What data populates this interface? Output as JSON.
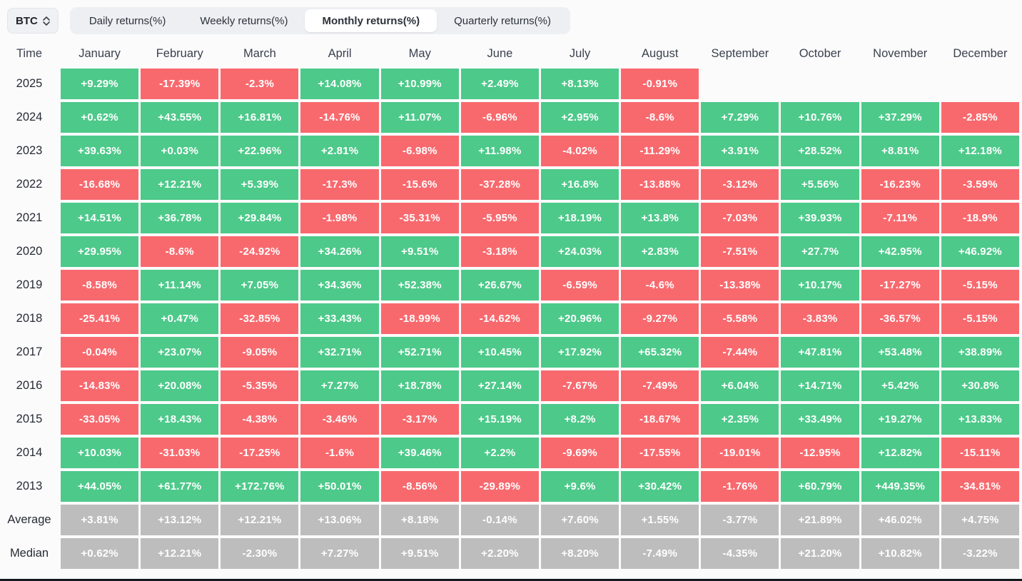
{
  "controls": {
    "symbol": "BTC",
    "tabs": [
      {
        "label": "Daily returns(%)",
        "active": false
      },
      {
        "label": "Weekly returns(%)",
        "active": false
      },
      {
        "label": "Monthly returns(%)",
        "active": true
      },
      {
        "label": "Quarterly returns(%)",
        "active": false
      }
    ]
  },
  "colors": {
    "positive": "#4dc98a",
    "negative": "#f8696e",
    "summary": "#bdbdbd"
  },
  "chart_data": {
    "type": "heatmap",
    "title": "BTC Monthly returns(%)",
    "time_header": "Time",
    "columns": [
      "January",
      "February",
      "March",
      "April",
      "May",
      "June",
      "July",
      "August",
      "September",
      "October",
      "November",
      "December"
    ],
    "rows": [
      {
        "label": "2025",
        "type": "year",
        "values": [
          "+9.29%",
          "-17.39%",
          "-2.3%",
          "+14.08%",
          "+10.99%",
          "+2.49%",
          "+8.13%",
          "-0.91%",
          "",
          "",
          "",
          ""
        ]
      },
      {
        "label": "2024",
        "type": "year",
        "values": [
          "+0.62%",
          "+43.55%",
          "+16.81%",
          "-14.76%",
          "+11.07%",
          "-6.96%",
          "+2.95%",
          "-8.6%",
          "+7.29%",
          "+10.76%",
          "+37.29%",
          "-2.85%"
        ]
      },
      {
        "label": "2023",
        "type": "year",
        "values": [
          "+39.63%",
          "+0.03%",
          "+22.96%",
          "+2.81%",
          "-6.98%",
          "+11.98%",
          "-4.02%",
          "-11.29%",
          "+3.91%",
          "+28.52%",
          "+8.81%",
          "+12.18%"
        ]
      },
      {
        "label": "2022",
        "type": "year",
        "values": [
          "-16.68%",
          "+12.21%",
          "+5.39%",
          "-17.3%",
          "-15.6%",
          "-37.28%",
          "+16.8%",
          "-13.88%",
          "-3.12%",
          "+5.56%",
          "-16.23%",
          "-3.59%"
        ]
      },
      {
        "label": "2021",
        "type": "year",
        "values": [
          "+14.51%",
          "+36.78%",
          "+29.84%",
          "-1.98%",
          "-35.31%",
          "-5.95%",
          "+18.19%",
          "+13.8%",
          "-7.03%",
          "+39.93%",
          "-7.11%",
          "-18.9%"
        ]
      },
      {
        "label": "2020",
        "type": "year",
        "values": [
          "+29.95%",
          "-8.6%",
          "-24.92%",
          "+34.26%",
          "+9.51%",
          "-3.18%",
          "+24.03%",
          "+2.83%",
          "-7.51%",
          "+27.7%",
          "+42.95%",
          "+46.92%"
        ]
      },
      {
        "label": "2019",
        "type": "year",
        "values": [
          "-8.58%",
          "+11.14%",
          "+7.05%",
          "+34.36%",
          "+52.38%",
          "+26.67%",
          "-6.59%",
          "-4.6%",
          "-13.38%",
          "+10.17%",
          "-17.27%",
          "-5.15%"
        ]
      },
      {
        "label": "2018",
        "type": "year",
        "values": [
          "-25.41%",
          "+0.47%",
          "-32.85%",
          "+33.43%",
          "-18.99%",
          "-14.62%",
          "+20.96%",
          "-9.27%",
          "-5.58%",
          "-3.83%",
          "-36.57%",
          "-5.15%"
        ]
      },
      {
        "label": "2017",
        "type": "year",
        "values": [
          "-0.04%",
          "+23.07%",
          "-9.05%",
          "+32.71%",
          "+52.71%",
          "+10.45%",
          "+17.92%",
          "+65.32%",
          "-7.44%",
          "+47.81%",
          "+53.48%",
          "+38.89%"
        ]
      },
      {
        "label": "2016",
        "type": "year",
        "values": [
          "-14.83%",
          "+20.08%",
          "-5.35%",
          "+7.27%",
          "+18.78%",
          "+27.14%",
          "-7.67%",
          "-7.49%",
          "+6.04%",
          "+14.71%",
          "+5.42%",
          "+30.8%"
        ]
      },
      {
        "label": "2015",
        "type": "year",
        "values": [
          "-33.05%",
          "+18.43%",
          "-4.38%",
          "-3.46%",
          "-3.17%",
          "+15.19%",
          "+8.2%",
          "-18.67%",
          "+2.35%",
          "+33.49%",
          "+19.27%",
          "+13.83%"
        ]
      },
      {
        "label": "2014",
        "type": "year",
        "values": [
          "+10.03%",
          "-31.03%",
          "-17.25%",
          "-1.6%",
          "+39.46%",
          "+2.2%",
          "-9.69%",
          "-17.55%",
          "-19.01%",
          "-12.95%",
          "+12.82%",
          "-15.11%"
        ]
      },
      {
        "label": "2013",
        "type": "year",
        "values": [
          "+44.05%",
          "+61.77%",
          "+172.76%",
          "+50.01%",
          "-8.56%",
          "-29.89%",
          "+9.6%",
          "+30.42%",
          "-1.76%",
          "+60.79%",
          "+449.35%",
          "-34.81%"
        ]
      },
      {
        "label": "Average",
        "type": "summary",
        "values": [
          "+3.81%",
          "+13.12%",
          "+12.21%",
          "+13.06%",
          "+8.18%",
          "-0.14%",
          "+7.60%",
          "+1.55%",
          "-3.77%",
          "+21.89%",
          "+46.02%",
          "+4.75%"
        ]
      },
      {
        "label": "Median",
        "type": "summary",
        "values": [
          "+0.62%",
          "+12.21%",
          "-2.30%",
          "+7.27%",
          "+9.51%",
          "+2.20%",
          "+8.20%",
          "-7.49%",
          "-4.35%",
          "+21.20%",
          "+10.82%",
          "-3.22%"
        ]
      }
    ]
  }
}
